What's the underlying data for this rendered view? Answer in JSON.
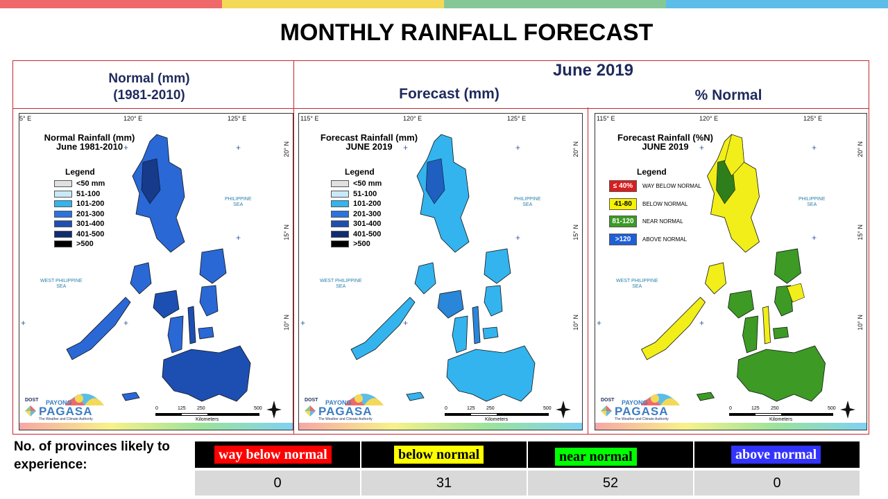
{
  "colors": {
    "bar": [
      "#f0696a",
      "#f4d958",
      "#86c797",
      "#5bbde8"
    ],
    "frame": "#c9242b",
    "header_text": "#1f2a5c"
  },
  "title": "MONTHLY RAINFALL FORECAST",
  "headers": {
    "normal_line1": "Normal (mm)",
    "normal_line2": "(1981-2010)",
    "month": "June 2019",
    "forecast": "Forecast (mm)",
    "pct_normal": "% Normal"
  },
  "maps": [
    {
      "title_line1": "Normal Rainfall (mm)",
      "title_line2": "June 1981-2010",
      "fill": "#2a68d6",
      "fill2": "#1d4fb3",
      "accent": "#173a8a",
      "lon_labels": [
        "5° E",
        "120° E",
        "125° E"
      ]
    },
    {
      "title_line1": "Forecast Rainfall (mm)",
      "title_line2": "JUNE 2019",
      "fill": "#33b4ee",
      "fill2": "#2a86d9",
      "accent": "#1f5fbf",
      "lon_labels": [
        "115° E",
        "120° E",
        "125° E"
      ]
    },
    {
      "title_line1": "Forecast Rainfall (%N)",
      "title_line2": "JUNE 2019",
      "fill": "#3c9a25",
      "fill2": "#f1ee1a",
      "accent": "#2f7e1c",
      "lon_labels": [
        "115° E",
        "120° E",
        "125° E"
      ]
    }
  ],
  "lat_labels": [
    "20° N",
    "15° N",
    "10° N"
  ],
  "sea_labels": {
    "philippine": [
      "PHILIPPINE",
      "SEA"
    ],
    "west": [
      "WEST PHILIPPINE",
      "SEA"
    ]
  },
  "legend_mm": {
    "title": "Legend",
    "items": [
      {
        "label": "<50 mm",
        "color": "#e0e0e0"
      },
      {
        "label": "51-100",
        "color": "#c8eaf8"
      },
      {
        "label": "101-200",
        "color": "#33b4ee"
      },
      {
        "label": "201-300",
        "color": "#2a73e0"
      },
      {
        "label": "301-400",
        "color": "#1d4fb3"
      },
      {
        "label": "401-500",
        "color": "#0f2b73"
      },
      {
        "label": ">500",
        "color": "#000000"
      }
    ]
  },
  "legend_pct": {
    "title": "Legend",
    "items": [
      {
        "box": "≤ 40%",
        "desc": "WAY BELOW NORMAL",
        "color": "#d81e1e",
        "text_color": "#ffffff"
      },
      {
        "box": "41-80",
        "desc": "BELOW NORMAL",
        "color": "#f7f200",
        "text_color": "#000000"
      },
      {
        "box": "81-120",
        "desc": "NEAR NORMAL",
        "color": "#3c9a25",
        "text_color": "#ffffff"
      },
      {
        "box": ">120",
        "desc": "ABOVE NORMAL",
        "color": "#1f5fd6",
        "text_color": "#ffffff"
      }
    ]
  },
  "logo": {
    "top": "DOST",
    "payong": "PAYONG",
    "name": "PAGASA",
    "tagline": "The Weather and Climate Authority"
  },
  "scale": {
    "ticks": [
      "0",
      "125",
      "250",
      "500"
    ],
    "unit": "Kilometers"
  },
  "bottom": {
    "label": "No. of provinces likely to experience:",
    "categories": [
      {
        "label": "way below normal",
        "color": "#ff0000",
        "count": "0"
      },
      {
        "label": "below normal",
        "color": "#ffff00",
        "count": "31"
      },
      {
        "label": "near normal",
        "color": "#00ff00",
        "count": "52"
      },
      {
        "label": "above normal",
        "color": "#3333ff",
        "count": "0"
      }
    ]
  }
}
